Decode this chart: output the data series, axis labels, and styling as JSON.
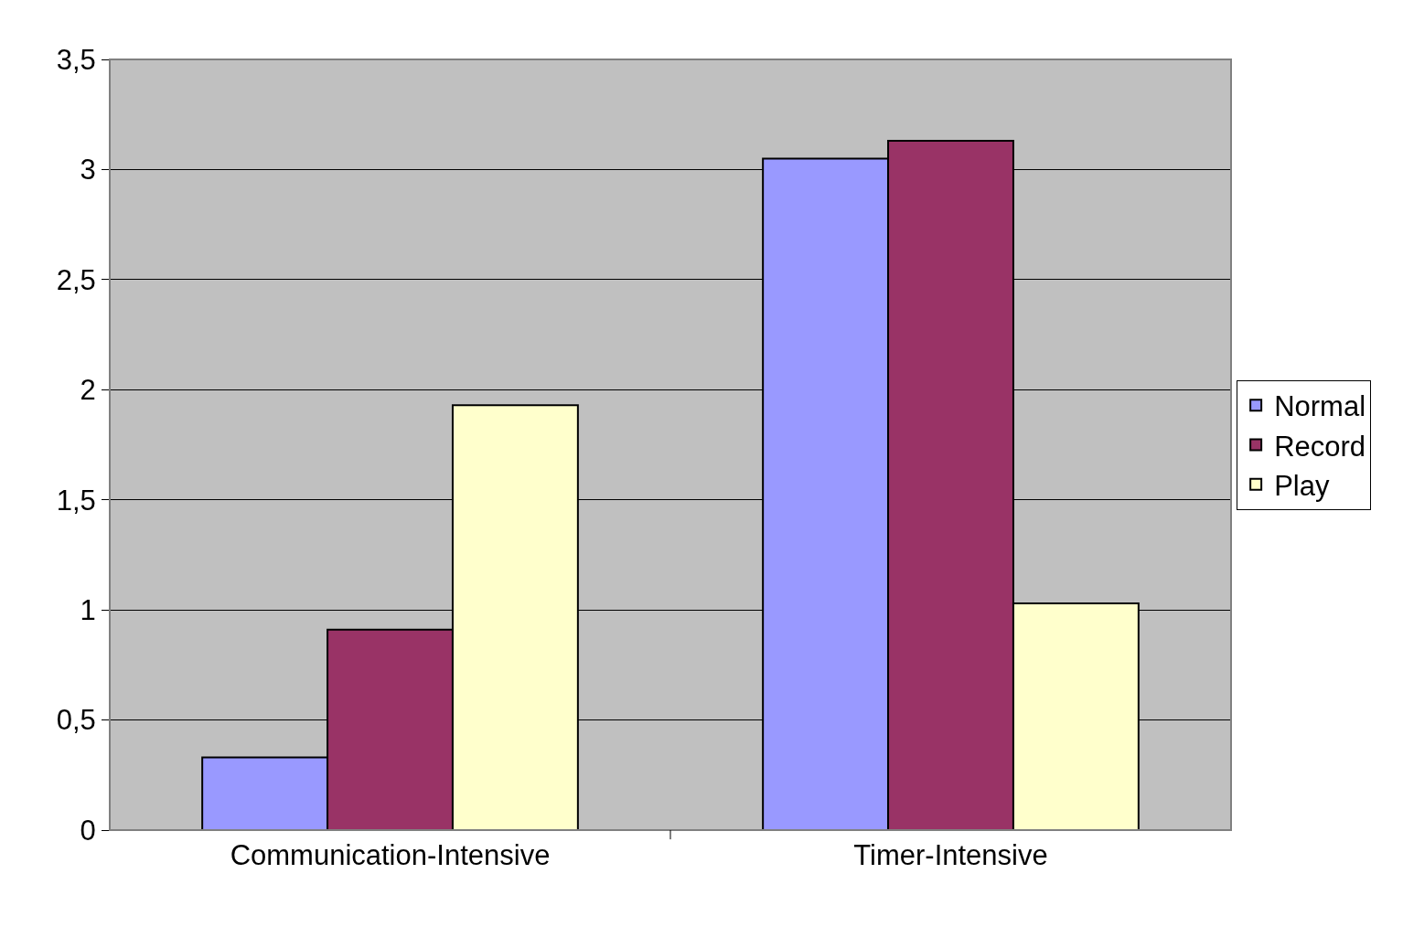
{
  "chart_data": {
    "type": "bar",
    "categories": [
      "Communication-Intensive",
      "Timer-Intensive"
    ],
    "series": [
      {
        "name": "Normal",
        "color": "#9999ff",
        "values": [
          0.33,
          3.05
        ]
      },
      {
        "name": "Record",
        "color": "#993366",
        "values": [
          0.91,
          3.13
        ]
      },
      {
        "name": "Play",
        "color": "#ffffcc",
        "values": [
          1.93,
          1.03
        ]
      }
    ],
    "ylim": [
      0,
      3.5
    ],
    "yticks": [
      0,
      {
        "value": 0.5,
        "label": "0,5"
      },
      1,
      {
        "value": 1.5,
        "label": "1,5"
      },
      2,
      {
        "value": 2.5,
        "label": "2,5"
      },
      3,
      {
        "value": 3.5,
        "label": "3,5"
      }
    ],
    "grid": "y",
    "legend": "right"
  }
}
